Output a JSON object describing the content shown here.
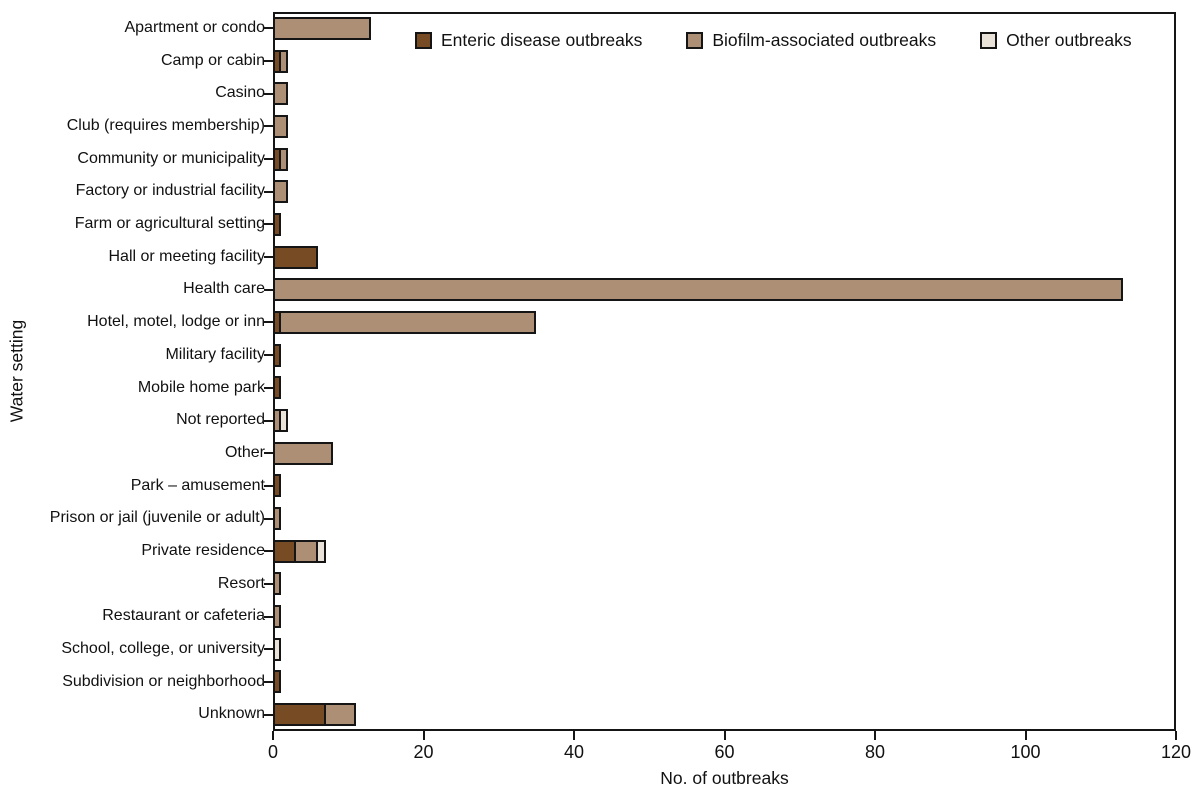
{
  "figure": {
    "x_axis_title": "No. of outbreaks",
    "y_axis_title": "Water setting"
  },
  "chart_data": {
    "type": "bar",
    "orientation": "horizontal",
    "stacked": true,
    "title": "",
    "xlabel": "No. of outbreaks",
    "ylabel": "Water setting",
    "xlim": [
      0,
      120
    ],
    "xticks": [
      0,
      20,
      40,
      60,
      80,
      100,
      120
    ],
    "grid": false,
    "legend_position": "top-inside",
    "colors": {
      "enteric": "#774b23",
      "biofilm": "#ad8f76",
      "other": "#e9e2d9",
      "axis": "#151515"
    },
    "categories": [
      "Apartment or condo",
      "Camp or cabin",
      "Casino",
      "Club (requires membership)",
      "Community or municipality",
      "Factory or industrial facility",
      "Farm or agricultural setting",
      "Hall or meeting facility",
      "Health care",
      "Hotel, motel, lodge or inn",
      "Military facility",
      "Mobile home park",
      "Not reported",
      "Other",
      "Park – amusement",
      "Prison or jail (juvenile or adult)",
      "Private residence",
      "Resort",
      "Restaurant or cafeteria",
      "School, college, or university",
      "Subdivision or neighborhood",
      "Unknown"
    ],
    "series": [
      {
        "name": "Enteric disease outbreaks",
        "color": "#774b23",
        "values": [
          0,
          1,
          0,
          0,
          1,
          0,
          1,
          6,
          0,
          1,
          1,
          1,
          0,
          0,
          1,
          0,
          3,
          0,
          0,
          0,
          1,
          7
        ]
      },
      {
        "name": "Biofilm-associated outbreaks",
        "color": "#ad8f76",
        "values": [
          13,
          1,
          2,
          2,
          1,
          2,
          0,
          0,
          113,
          34,
          0,
          0,
          1,
          8,
          0,
          1,
          3,
          1,
          1,
          0,
          0,
          4
        ]
      },
      {
        "name": "Other outbreaks",
        "color": "#e9e2d9",
        "values": [
          0,
          0,
          0,
          0,
          0,
          0,
          0,
          0,
          0,
          0,
          0,
          0,
          1,
          0,
          0,
          0,
          1,
          0,
          0,
          1,
          0,
          0
        ]
      }
    ]
  }
}
